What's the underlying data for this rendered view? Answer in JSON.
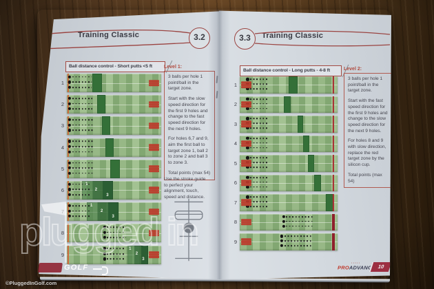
{
  "watermark": {
    "script": "plugged in",
    "golf": "GOLF",
    "copyright": "©PluggedInGolf.com"
  },
  "left_page": {
    "section": "3.2",
    "title": "Training Classic",
    "drill_title": "Ball distance control - Short putts <5 ft",
    "level": {
      "label": "Level 1:",
      "paragraphs": [
        "3 balls per hole 1 point/ball in the target zone.",
        "Start with the slow speed direction for the first 9 holes and change to the fast speed direction for the next 9 holes.",
        "For holes 6,7 and 9, aim the first ball to target zone 1, ball 2 to zone 2 and ball 3 to zone 3.",
        "Total points (max 54)"
      ]
    },
    "note": "Use the stroke guide to perfect your alignment, touch, speed and distance.",
    "mat_style": {
      "marks_side": "right",
      "start_line": 0.015
    },
    "holes": [
      {
        "num": "1",
        "start": 0.03,
        "dash_end": 0.26,
        "zone": 0.27,
        "zone_w": 0.1
      },
      {
        "num": "2",
        "start": 0.03,
        "dash_end": 0.27,
        "zone": 0.32,
        "zone_w": 0.09
      },
      {
        "num": "3",
        "start": 0.03,
        "dash_end": 0.28,
        "zone": 0.37,
        "zone_w": 0.09
      },
      {
        "num": "4",
        "start": 0.03,
        "dash_end": 0.28,
        "zone": 0.41,
        "zone_w": 0.09
      },
      {
        "num": "5",
        "start": 0.03,
        "dash_end": 0.28,
        "zone": 0.46,
        "zone_w": 0.1
      },
      {
        "num": "6",
        "start": 0.03,
        "dash_end": 0.24,
        "zone": 0.16,
        "zone_w": 0.33,
        "labels": [
          0.21,
          0.31,
          0.43
        ]
      },
      {
        "num": "7",
        "start": 0.03,
        "dash_end": 0.24,
        "zone": 0.21,
        "zone_w": 0.34,
        "labels": [
          0.26,
          0.37,
          0.49
        ]
      },
      {
        "num": "8",
        "start": 0.4,
        "dash_end": 0.63
      },
      {
        "num": "9",
        "start": 0.4,
        "dash_end": 0.62,
        "zone": 0.64,
        "zone_w": 0.22,
        "labels": [
          0.67,
          0.74,
          0.81
        ]
      }
    ]
  },
  "right_page": {
    "section": "3.3",
    "title": "Training Classic",
    "drill_title": "Ball distance control - Long putts - 4-8 ft",
    "level": {
      "label": "Level 2:",
      "paragraphs": [
        "3 balls per hole 1 point/ball in the target zone.",
        "Start with the fast speed direction for the first 9 holes and change to the slow speed direction for the next 9 holes.",
        "For holes 8 and 9 with slow direction, replace the red target zone by the silicon cup.",
        "Total points (max 54)"
      ]
    },
    "mat_style": {
      "marks_side": "left",
      "end_line": 0.955
    },
    "holes": [
      {
        "num": "1",
        "start": 0.08,
        "dash_end": 0.28,
        "zone": 0.5,
        "zone_w": 0.09
      },
      {
        "num": "2",
        "start": 0.08,
        "dash_end": 0.28,
        "zone": 0.45,
        "zone_w": 0.07
      },
      {
        "num": "3",
        "start": 0.08,
        "dash_end": 0.28,
        "zone": 0.59,
        "zone_w": 0.06
      },
      {
        "num": "4",
        "start": 0.08,
        "dash_end": 0.28,
        "zone": 0.65,
        "zone_w": 0.06
      },
      {
        "num": "5",
        "start": 0.08,
        "dash_end": 0.28,
        "zone": 0.7,
        "zone_w": 0.06
      },
      {
        "num": "6",
        "start": 0.08,
        "dash_end": 0.28,
        "zone": 0.76,
        "zone_w": 0.07
      },
      {
        "num": "7",
        "start": 0.08,
        "dash_end": 0.28,
        "zone": 0.88,
        "zone_w": 0.08
      },
      {
        "num": "8",
        "start": 0.45,
        "dash_end": 0.76,
        "big_end": true
      },
      {
        "num": "9",
        "start": 0.43,
        "dash_end": 0.74,
        "big_end": true
      }
    ],
    "footer": {
      "brand_pro": "PRO",
      "brand_advanced": "ADVANCED",
      "page_number": "10"
    }
  }
}
